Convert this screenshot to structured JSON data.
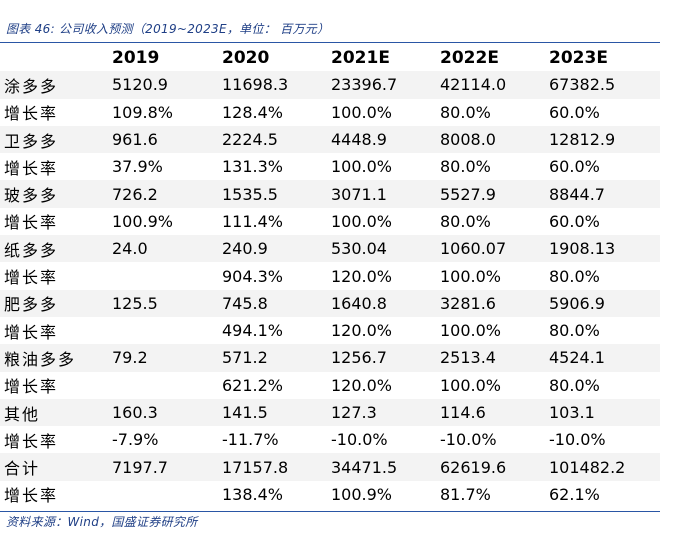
{
  "caption": "图表 46:  公司收入预测（2019~2023E，单位：  百万元）",
  "table": {
    "header": [
      "",
      "2019",
      "2020",
      "2021E",
      "2022E",
      "2023E"
    ],
    "rows": [
      [
        "涂多多",
        "5120.9",
        "11698.3",
        "23396.7",
        "42114.0",
        "67382.5"
      ],
      [
        "增长率",
        "109.8%",
        "128.4%",
        "100.0%",
        "80.0%",
        "60.0%"
      ],
      [
        "卫多多",
        "961.6",
        "2224.5",
        "4448.9",
        "8008.0",
        "12812.9"
      ],
      [
        "增长率",
        "37.9%",
        "131.3%",
        "100.0%",
        "80.0%",
        "60.0%"
      ],
      [
        "玻多多",
        "726.2",
        "1535.5",
        "3071.1",
        "5527.9",
        "8844.7"
      ],
      [
        "增长率",
        "100.9%",
        "111.4%",
        "100.0%",
        "80.0%",
        "60.0%"
      ],
      [
        "纸多多",
        "24.0",
        "240.9",
        "530.04",
        "1060.07",
        "1908.13"
      ],
      [
        "增长率",
        "",
        "904.3%",
        "120.0%",
        "100.0%",
        "80.0%"
      ],
      [
        "肥多多",
        "125.5",
        "745.8",
        "1640.8",
        "3281.6",
        "5906.9"
      ],
      [
        "增长率",
        "",
        "494.1%",
        "120.0%",
        "100.0%",
        "80.0%"
      ],
      [
        "粮油多多",
        "79.2",
        "571.2",
        "1256.7",
        "2513.4",
        "4524.1"
      ],
      [
        "增长率",
        "",
        "621.2%",
        "120.0%",
        "100.0%",
        "80.0%"
      ],
      [
        "其他",
        "160.3",
        "141.5",
        "127.3",
        "114.6",
        "103.1"
      ],
      [
        "增长率",
        "-7.9%",
        "-11.7%",
        "-10.0%",
        "-10.0%",
        "-10.0%"
      ],
      [
        "合计",
        "7197.7",
        "17157.8",
        "34471.5",
        "62619.6",
        "101482.2"
      ],
      [
        "增长率",
        "",
        "138.4%",
        "100.9%",
        "81.7%",
        "62.1%"
      ]
    ]
  },
  "source": "资料来源：Wind，国盛证券研究所",
  "colors": {
    "accent": "#2a56a5",
    "caption_text": "#1f3f86",
    "row_stripe": "#f3f3f3"
  }
}
